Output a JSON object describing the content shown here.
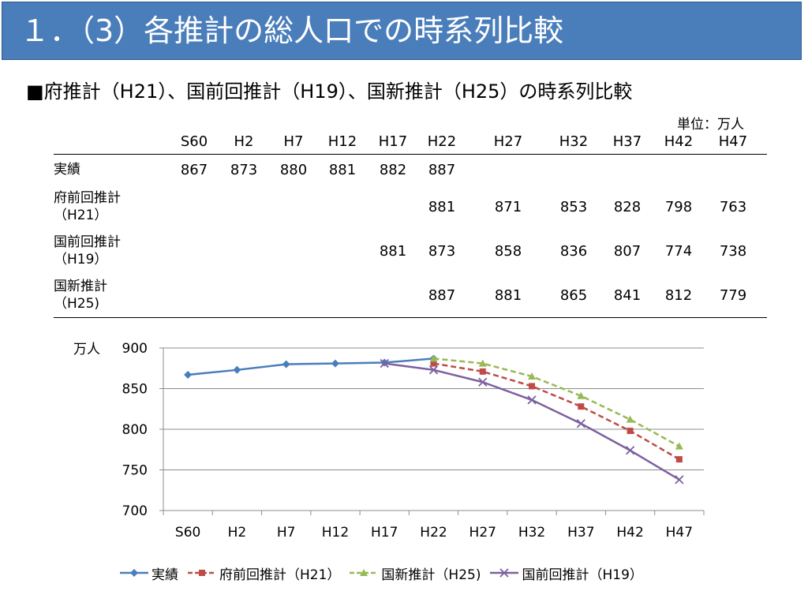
{
  "title": "１．（3）各推計の総人口での時系列比較",
  "subtitle": "■府推計（H21）、国前回推計（H19）、国新推計（H25）の時系列比較",
  "unit_label": "単位：万人",
  "table": {
    "columns": [
      "S60",
      "H2",
      "H7",
      "H12",
      "H17",
      "H22",
      "H27",
      "H32",
      "H37",
      "H42",
      "H47"
    ],
    "rows": [
      {
        "label": "実績",
        "values": [
          "867",
          "873",
          "880",
          "881",
          "882",
          "887",
          "",
          "",
          "",
          "",
          ""
        ]
      },
      {
        "label": "府前回推計\n（H21）",
        "values": [
          "",
          "",
          "",
          "",
          "",
          "881",
          "871",
          "853",
          "828",
          "798",
          "763"
        ]
      },
      {
        "label": "国前回推計\n（H19）",
        "values": [
          "",
          "",
          "",
          "",
          "881",
          "873",
          "858",
          "836",
          "807",
          "774",
          "738"
        ]
      },
      {
        "label": "国新推計\n（H25)",
        "values": [
          "",
          "",
          "",
          "",
          "",
          "887",
          "881",
          "865",
          "841",
          "812",
          "779"
        ]
      }
    ]
  },
  "chart_data": {
    "type": "line",
    "categories": [
      "S60",
      "H2",
      "H7",
      "H12",
      "H17",
      "H22",
      "H27",
      "H32",
      "H37",
      "H42",
      "H47"
    ],
    "ylabel": "万人",
    "ylim": [
      700,
      900
    ],
    "yticks": [
      700,
      750,
      800,
      850,
      900
    ],
    "grid": true,
    "legend_position": "bottom",
    "series": [
      {
        "name": "実績",
        "color": "#4a7ebb",
        "marker": "diamond",
        "dash": "solid",
        "values": [
          867,
          873,
          880,
          881,
          882,
          887,
          null,
          null,
          null,
          null,
          null
        ]
      },
      {
        "name": "府前回推計（H21）",
        "color": "#be4b48",
        "marker": "square",
        "dash": "dashed",
        "values": [
          null,
          null,
          null,
          null,
          null,
          881,
          871,
          853,
          828,
          798,
          763
        ]
      },
      {
        "name": "国新推計（H25)",
        "color": "#98b954",
        "marker": "triangle",
        "dash": "dashed",
        "values": [
          null,
          null,
          null,
          null,
          null,
          887,
          881,
          865,
          841,
          812,
          779
        ]
      },
      {
        "name": "国前回推計（H19）",
        "color": "#7d60a0",
        "marker": "x",
        "dash": "solid",
        "values": [
          null,
          null,
          null,
          null,
          881,
          873,
          858,
          836,
          807,
          774,
          738
        ]
      }
    ]
  }
}
